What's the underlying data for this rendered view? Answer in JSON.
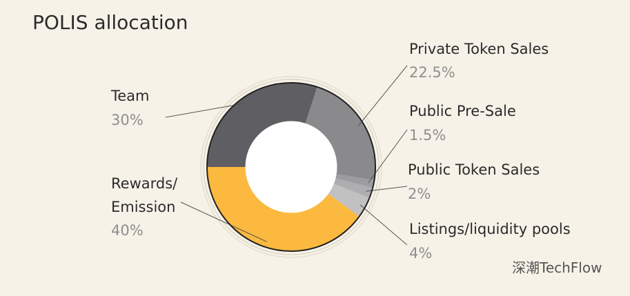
{
  "chart_data": {
    "type": "pie",
    "title": "POLIS allocation",
    "categories": [
      "Team",
      "Private Token Sales",
      "Public Pre-Sale",
      "Public Token Sales",
      "Listings/liquidity pools",
      "Rewards/\nEmission"
    ],
    "values": [
      30,
      22.5,
      1.5,
      2,
      4,
      40
    ],
    "value_labels": [
      "30%",
      "22.5%",
      "1.5%",
      "2%",
      "4%",
      "40%"
    ],
    "colors": [
      "#5f5e62",
      "#8a898b",
      "#9d9c9e",
      "#aeadaf",
      "#c2c1c2",
      "#fbb93f"
    ]
  },
  "watermark": "深潮TechFlow"
}
